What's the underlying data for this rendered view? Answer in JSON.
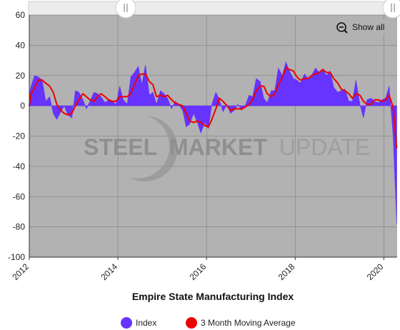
{
  "chart_data": {
    "type": "area",
    "title": "Empire State Manufacturing Index",
    "xlabel": "",
    "ylabel": "",
    "xlim": [
      2012.0,
      2020.3
    ],
    "ylim": [
      -100,
      60
    ],
    "x_ticks": [
      "2012",
      "2014",
      "2016",
      "2018",
      "2020"
    ],
    "y_ticks": [
      "60",
      "40",
      "20",
      "0",
      "-20",
      "-40",
      "-60",
      "-80",
      "-100"
    ],
    "grid": true,
    "legend_position": "bottom",
    "series": [
      {
        "name": "Index",
        "type": "area",
        "color": "#6633ff",
        "x": [
          2012.0,
          2012.04,
          2012.12,
          2012.21,
          2012.29,
          2012.37,
          2012.46,
          2012.54,
          2012.62,
          2012.71,
          2012.79,
          2012.87,
          2012.96,
          2013.04,
          2013.12,
          2013.21,
          2013.29,
          2013.37,
          2013.46,
          2013.54,
          2013.62,
          2013.71,
          2013.79,
          2013.87,
          2013.96,
          2014.04,
          2014.12,
          2014.21,
          2014.29,
          2014.37,
          2014.46,
          2014.54,
          2014.62,
          2014.71,
          2014.79,
          2014.87,
          2014.96,
          2015.04,
          2015.12,
          2015.21,
          2015.29,
          2015.37,
          2015.46,
          2015.54,
          2015.62,
          2015.71,
          2015.79,
          2015.87,
          2015.96,
          2016.04,
          2016.12,
          2016.21,
          2016.29,
          2016.37,
          2016.46,
          2016.54,
          2016.62,
          2016.71,
          2016.79,
          2016.87,
          2016.96,
          2017.04,
          2017.12,
          2017.21,
          2017.29,
          2017.37,
          2017.46,
          2017.54,
          2017.62,
          2017.71,
          2017.79,
          2017.87,
          2017.96,
          2018.04,
          2018.12,
          2018.21,
          2018.29,
          2018.37,
          2018.46,
          2018.54,
          2018.62,
          2018.71,
          2018.79,
          2018.87,
          2018.96,
          2019.04,
          2019.12,
          2019.21,
          2019.29,
          2019.37,
          2019.46,
          2019.54,
          2019.62,
          2019.71,
          2019.79,
          2019.87,
          2019.96,
          2020.04,
          2020.12,
          2020.21,
          2020.29
        ],
        "values": [
          8,
          13,
          20,
          19,
          17,
          3,
          6,
          -5,
          -9,
          -4,
          0,
          -6,
          -8,
          10,
          9,
          4,
          -2,
          3,
          9,
          8,
          6,
          2,
          4,
          3,
          1,
          13,
          4,
          1,
          19,
          22,
          26,
          14,
          27,
          7,
          9,
          1,
          10,
          8,
          5,
          -2,
          3,
          1,
          -3,
          -14,
          -12,
          -5,
          -11,
          -18,
          -11,
          -15,
          1,
          9,
          4,
          -4,
          1,
          -5,
          -3,
          1,
          -3,
          0,
          7,
          6,
          18,
          16,
          5,
          2,
          10,
          10,
          25,
          20,
          29,
          23,
          18,
          17,
          15,
          21,
          18,
          20,
          25,
          22,
          24,
          20,
          23,
          12,
          9,
          10,
          11,
          3,
          3,
          17,
          1,
          -8,
          4,
          5,
          3,
          2,
          4,
          5,
          13,
          -20,
          -78
        ]
      },
      {
        "name": "3 Month Moving Average",
        "type": "line",
        "color": "#ee0000",
        "x": [
          2012.0,
          2012.04,
          2012.12,
          2012.21,
          2012.29,
          2012.37,
          2012.46,
          2012.54,
          2012.62,
          2012.71,
          2012.79,
          2012.87,
          2012.96,
          2013.04,
          2013.12,
          2013.21,
          2013.29,
          2013.37,
          2013.46,
          2013.54,
          2013.62,
          2013.71,
          2013.79,
          2013.87,
          2013.96,
          2014.04,
          2014.12,
          2014.21,
          2014.29,
          2014.37,
          2014.46,
          2014.54,
          2014.62,
          2014.71,
          2014.79,
          2014.87,
          2014.96,
          2015.04,
          2015.12,
          2015.21,
          2015.29,
          2015.37,
          2015.46,
          2015.54,
          2015.62,
          2015.71,
          2015.79,
          2015.87,
          2015.96,
          2016.04,
          2016.12,
          2016.21,
          2016.29,
          2016.37,
          2016.46,
          2016.54,
          2016.62,
          2016.71,
          2016.79,
          2016.87,
          2016.96,
          2017.04,
          2017.12,
          2017.21,
          2017.29,
          2017.37,
          2017.46,
          2017.54,
          2017.62,
          2017.71,
          2017.79,
          2017.87,
          2017.96,
          2018.04,
          2018.12,
          2018.21,
          2018.29,
          2018.37,
          2018.46,
          2018.54,
          2018.62,
          2018.71,
          2018.79,
          2018.87,
          2018.96,
          2019.04,
          2019.12,
          2019.21,
          2019.29,
          2019.37,
          2019.46,
          2019.54,
          2019.62,
          2019.71,
          2019.79,
          2019.87,
          2019.96,
          2020.04,
          2020.12,
          2020.21,
          2020.29
        ],
        "values": [
          0,
          8,
          12,
          17,
          17,
          15,
          13,
          9,
          1,
          -3,
          -5,
          -6,
          -5,
          0,
          4,
          8,
          6,
          4,
          3,
          6,
          8,
          6,
          4,
          3,
          3,
          6,
          6,
          6,
          8,
          14,
          20,
          21,
          21,
          16,
          14,
          6,
          7,
          6,
          7,
          4,
          2,
          1,
          0,
          -5,
          -10,
          -11,
          -10,
          -11,
          -13,
          -14,
          -9,
          -2,
          5,
          3,
          0,
          -3,
          -2,
          -2,
          -2,
          -1,
          1,
          4,
          10,
          13,
          13,
          8,
          6,
          8,
          14,
          19,
          25,
          24,
          23,
          19,
          17,
          18,
          18,
          20,
          21,
          22,
          24,
          22,
          22,
          18,
          15,
          11,
          10,
          8,
          5,
          8,
          7,
          3,
          1,
          1,
          4,
          4,
          3,
          4,
          7,
          -1,
          -28
        ]
      }
    ]
  },
  "legend": {
    "items": [
      {
        "label": "Index",
        "color": "#6633ff"
      },
      {
        "label": "3 Month Moving Average",
        "color": "#ee0000"
      }
    ]
  },
  "controls": {
    "show_all_label": "Show all",
    "zoom_icon": "zoom-out-icon",
    "slider_handle_icon": "drag-handle-icon"
  },
  "watermark": {
    "word1": "STEEL",
    "word2": "MARKET",
    "word3": "UPDATE"
  },
  "colors": {
    "plot_background": "#b2b2b2",
    "grid": "#8a8a8a",
    "watermark": "#9a9a9a"
  }
}
